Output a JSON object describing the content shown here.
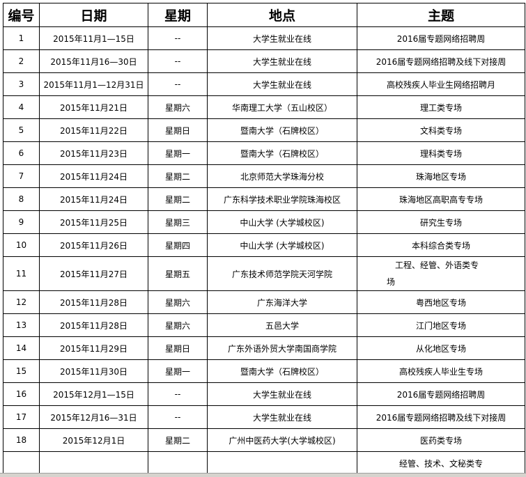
{
  "headers": [
    "编号",
    "日期",
    "星期",
    "地点",
    "主题"
  ],
  "rows": [
    [
      "1",
      "2015年11月1—15日",
      "--",
      "大学生就业在线",
      "2016届专题网络招聘周"
    ],
    [
      "2",
      "2015年11月16—30日",
      "--",
      "大学生就业在线",
      "2016届专题网络招聘及线下对接周"
    ],
    [
      "3",
      "2015年11月1—12月31日",
      "--",
      "大学生就业在线",
      "高校残疾人毕业生网络招聘月"
    ],
    [
      "4",
      "2015年11月21日",
      "星期六",
      "华南理工大学（五山校区）",
      "理工类专场"
    ],
    [
      "5",
      "2015年11月22日",
      "星期日",
      "暨南大学（石牌校区）",
      "文科类专场"
    ],
    [
      "6",
      "2015年11月23日",
      "星期一",
      "暨南大学（石牌校区）",
      "理科类专场"
    ],
    [
      "7",
      "2015年11月24日",
      "星期二",
      "北京师范大学珠海分校",
      "珠海地区专场"
    ],
    [
      "8",
      "2015年11月24日",
      "星期二",
      "广东科学技术职业学院珠海校区",
      "珠海地区高职高专专场"
    ],
    [
      "9",
      "2015年11月25日",
      "星期三",
      "中山大学 (大学城校区)",
      "研究生专场"
    ],
    [
      "10",
      "2015年11月26日",
      "星期四",
      "中山大学 (大学城校区)",
      "本科综合类专场"
    ],
    [
      "11",
      "2015年11月27日",
      "星期五",
      "广东技术师范学院天河学院",
      "工程、经管、外语类专场"
    ],
    [
      "12",
      "2015年11月28日",
      "星期六",
      "广东海洋大学",
      "粤西地区专场"
    ],
    [
      "13",
      "2015年11月28日",
      "星期六",
      "五邑大学",
      "江门地区专场"
    ],
    [
      "14",
      "2015年11月29日",
      "星期日",
      "广东外语外贸大学南国商学院",
      "从化地区专场"
    ],
    [
      "15",
      "2015年11月30日",
      "星期一",
      "暨南大学（石牌校区）",
      "高校残疾人毕业生专场"
    ],
    [
      "16",
      "2015年12月1—15日",
      "--",
      "大学生就业在线",
      "2016届专题网络招聘周"
    ],
    [
      "17",
      "2015年12月16—31日",
      "--",
      "大学生就业在线",
      "2016届专题网络招聘及线下对接周"
    ],
    [
      "18",
      "2015年12月1日",
      "星期二",
      "广州中医药大学(大学城校区)",
      "医药类专场"
    ],
    [
      "",
      "",
      "",
      "",
      "经管、技术、文秘类专"
    ]
  ]
}
